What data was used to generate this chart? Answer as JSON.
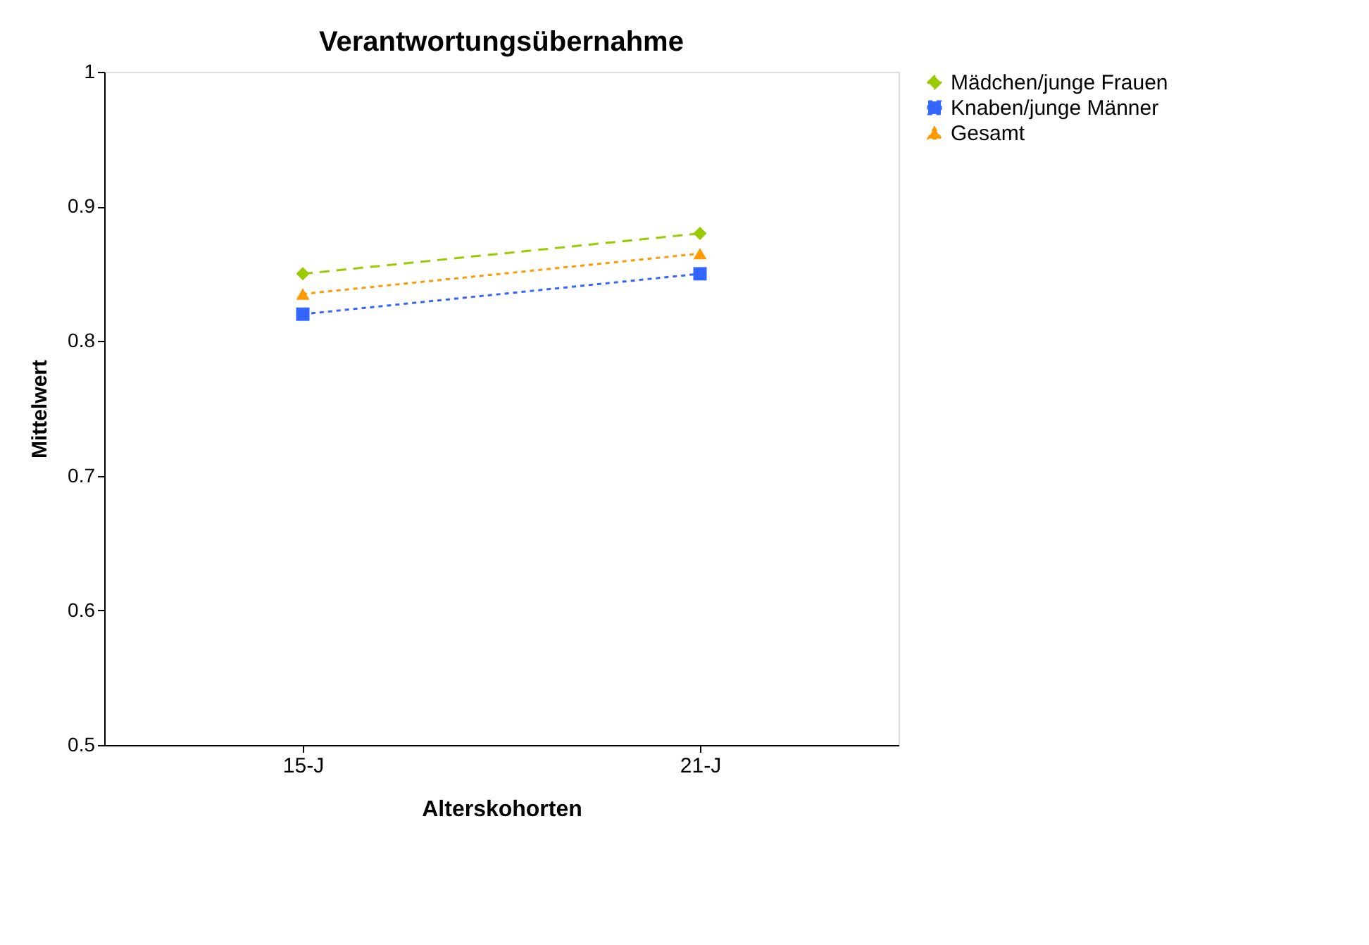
{
  "chart_data": {
    "type": "line",
    "title": "Verantwortungsübernahme",
    "xlabel": "Alterskohorten",
    "ylabel": "Mittelwert",
    "categories": [
      "15-J",
      "21-J"
    ],
    "series": [
      {
        "name": "Mädchen/junge Frauen",
        "color": "#99cc00",
        "values": [
          0.85,
          0.88
        ],
        "marker": "diamond",
        "line_style": "dashed"
      },
      {
        "name": "Knaben/junge Männer",
        "color": "#3366ff",
        "values": [
          0.82,
          0.85
        ],
        "marker": "square",
        "line_style": "dotted"
      },
      {
        "name": "Gesamt",
        "color": "#ff9900",
        "values": [
          0.835,
          0.865
        ],
        "marker": "triangle",
        "line_style": "dotted"
      }
    ],
    "ylim": [
      0.5,
      1
    ],
    "yticks": [
      0.5,
      0.6,
      0.7,
      0.8,
      0.9,
      1
    ],
    "grid": false,
    "legend": "right"
  }
}
